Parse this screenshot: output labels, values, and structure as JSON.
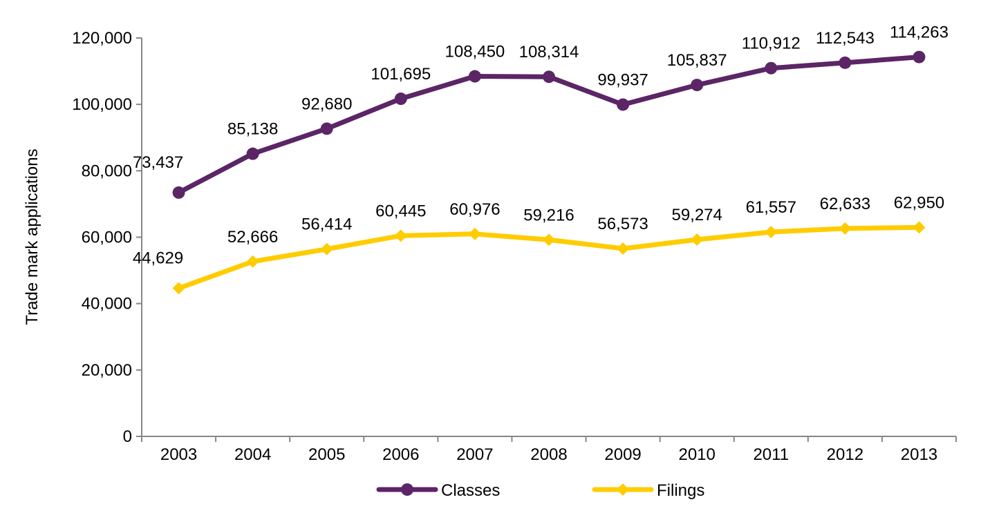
{
  "chart_data": {
    "type": "line",
    "categories": [
      "2003",
      "2004",
      "2005",
      "2006",
      "2007",
      "2008",
      "2009",
      "2010",
      "2011",
      "2012",
      "2013"
    ],
    "ylabel": "Trade mark applications",
    "xlabel": "",
    "ylim": [
      0,
      120000
    ],
    "y_ticks": [
      "0",
      "20,000",
      "40,000",
      "60,000",
      "80,000",
      "100,000",
      "120,000"
    ],
    "grid": false,
    "legend_position": "bottom",
    "series": [
      {
        "name": "Classes",
        "color": "#5B2566",
        "marker": "circle",
        "values": [
          73437,
          85138,
          92680,
          101695,
          108450,
          108314,
          99937,
          105837,
          110912,
          112543,
          114263
        ],
        "labels": [
          "73,437",
          "85,138",
          "92,680",
          "101,695",
          "108,450",
          "108,314",
          "99,937",
          "105,837",
          "110,912",
          "112,543",
          "114,263"
        ]
      },
      {
        "name": "Filings",
        "color": "#FFCC00",
        "marker": "diamond",
        "values": [
          44629,
          52666,
          56414,
          60445,
          60976,
          59216,
          56573,
          59274,
          61557,
          62633,
          62950
        ],
        "labels": [
          "44,629",
          "52,666",
          "56,414",
          "60,445",
          "60,976",
          "59,216",
          "56,573",
          "59,274",
          "61,557",
          "62,633",
          "62,950"
        ]
      }
    ]
  }
}
